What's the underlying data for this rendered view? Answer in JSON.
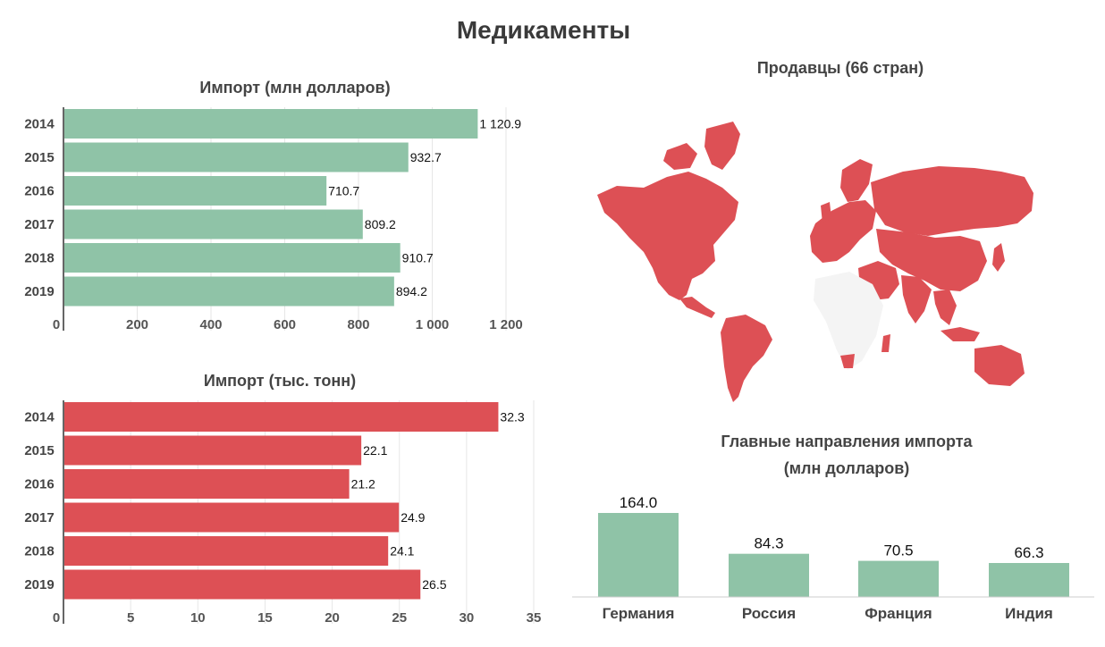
{
  "page": {
    "title": "Медикаменты"
  },
  "colors": {
    "green": "#8fc3a7",
    "red": "#dd5055"
  },
  "chart_data": [
    {
      "id": "import-value",
      "type": "bar",
      "orientation": "horizontal",
      "title": "Импорт (млн долларов)",
      "categories": [
        "2014",
        "2015",
        "2016",
        "2017",
        "2018",
        "2019"
      ],
      "values": [
        1120.9,
        932.7,
        710.7,
        809.2,
        910.7,
        894.2
      ],
      "value_labels": [
        "1 120.9",
        "932.7",
        "710.7",
        "809.2",
        "910.7",
        "894.2"
      ],
      "xlim": [
        0,
        1200
      ],
      "x_ticks": [
        0,
        200,
        400,
        600,
        800,
        1000,
        1200
      ],
      "x_tick_labels": [
        "0",
        "200",
        "400",
        "600",
        "800",
        "1 000",
        "1 200"
      ],
      "grid": true,
      "color": "#8fc3a7"
    },
    {
      "id": "import-weight",
      "type": "bar",
      "orientation": "horizontal",
      "title": "Импорт (тыс. тонн)",
      "categories": [
        "2014",
        "2015",
        "2016",
        "2017",
        "2018",
        "2019"
      ],
      "values": [
        32.3,
        22.1,
        21.2,
        24.9,
        24.1,
        26.5
      ],
      "value_labels": [
        "32.3",
        "22.1",
        "21.2",
        "24.9",
        "24.1",
        "26.5"
      ],
      "xlim": [
        0,
        35
      ],
      "x_ticks": [
        0,
        5,
        10,
        15,
        20,
        25,
        30,
        35
      ],
      "x_tick_labels": [
        "0",
        "5",
        "10",
        "15",
        "20",
        "25",
        "30",
        "35"
      ],
      "grid": true,
      "color": "#dd5055"
    },
    {
      "id": "top-sources",
      "type": "bar",
      "orientation": "vertical",
      "title": "Главные направления импорта",
      "subtitle": "(млн долларов)",
      "categories": [
        "Германия",
        "Россия",
        "Франция",
        "Индия"
      ],
      "values": [
        164.0,
        84.3,
        70.5,
        66.3
      ],
      "value_labels": [
        "164.0",
        "84.3",
        "70.5",
        "66.3"
      ],
      "ylim": [
        0,
        164.0
      ],
      "grid": false,
      "color": "#8fc3a7"
    }
  ],
  "map": {
    "title": "Продавцы (66 стран)",
    "highlight_color": "#dd5055"
  }
}
